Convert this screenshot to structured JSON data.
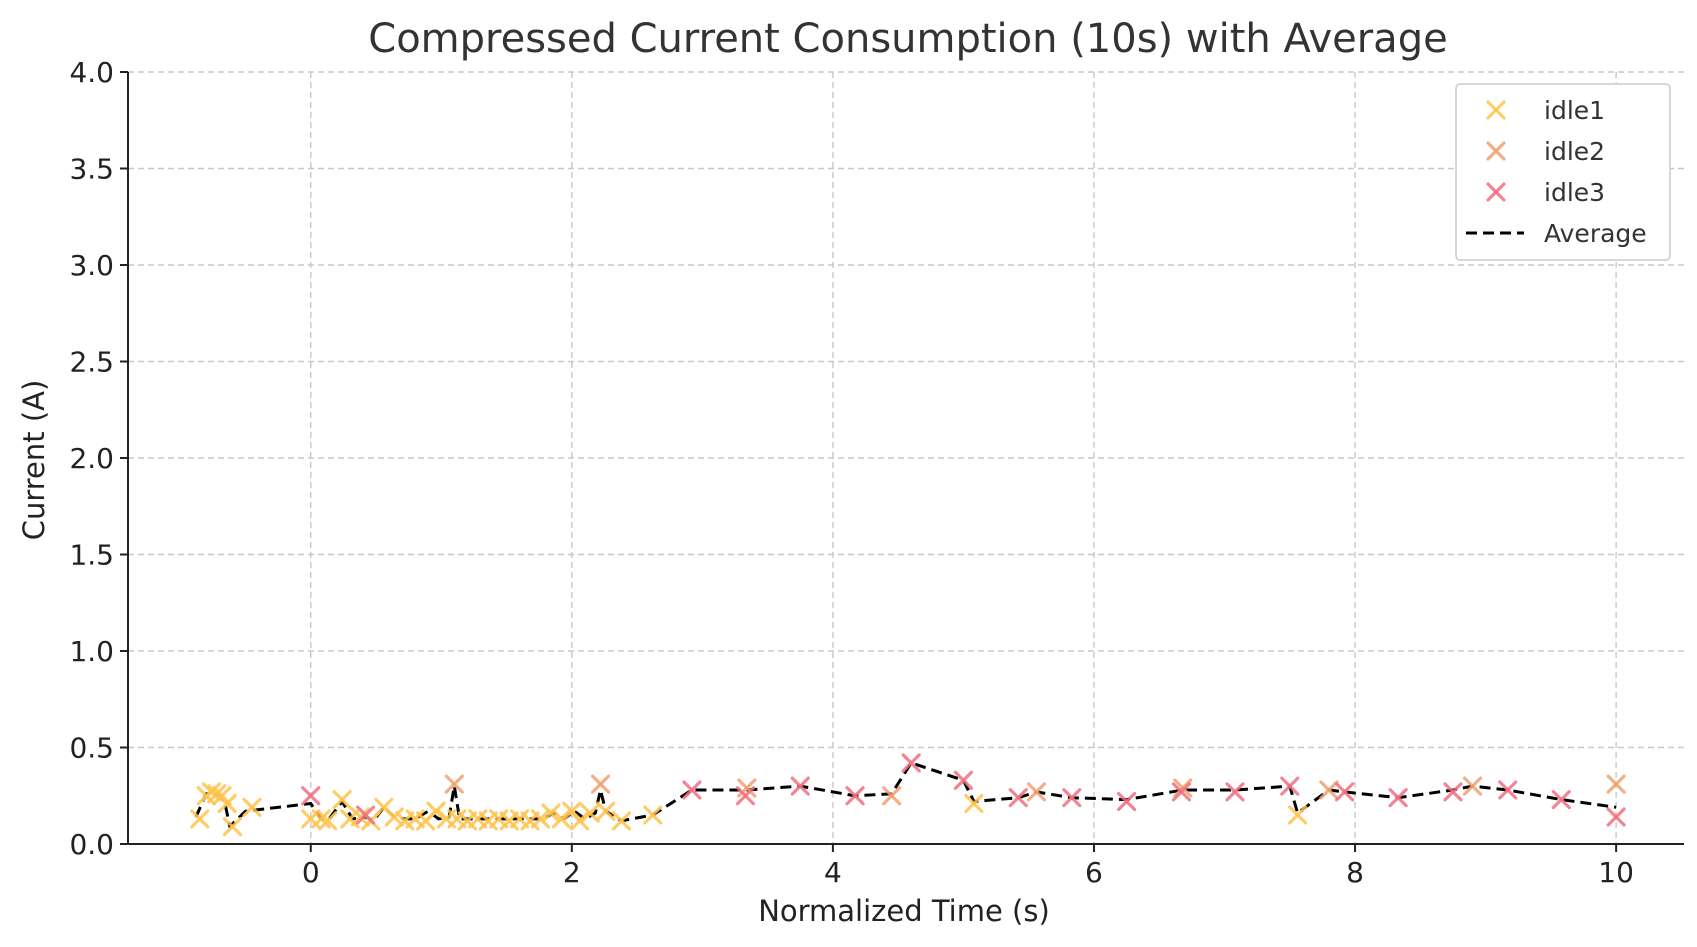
{
  "chart_data": {
    "type": "scatter",
    "title": "Compressed Current Consumption (10s) with Average",
    "xlabel": "Normalized Time (s)",
    "ylabel": "Current (A)",
    "xlim": [
      -1.4,
      10.52
    ],
    "ylim": [
      0.0,
      4.0
    ],
    "xticks": [
      0,
      2,
      4,
      6,
      8,
      10
    ],
    "xtick_labels": [
      "0",
      "2",
      "4",
      "6",
      "8",
      "10"
    ],
    "yticks": [
      0.0,
      0.5,
      1.0,
      1.5,
      2.0,
      2.5,
      3.0,
      3.5,
      4.0
    ],
    "ytick_labels": [
      "0.0",
      "0.5",
      "1.0",
      "1.5",
      "2.0",
      "2.5",
      "3.0",
      "3.5",
      "4.0"
    ],
    "grid": true,
    "legend_position": "top-right",
    "series": [
      {
        "name": "idle1",
        "color": "#FFC34D",
        "marker": "x",
        "x": [
          -0.85,
          -0.8,
          -0.76,
          -0.72,
          -0.68,
          -0.64,
          -0.6,
          -0.45,
          0.0,
          0.08,
          0.13,
          0.24,
          0.3,
          0.38,
          0.46,
          0.56,
          0.64,
          0.72,
          0.8,
          0.88,
          0.96,
          1.04,
          1.12,
          1.2,
          1.28,
          1.36,
          1.44,
          1.52,
          1.6,
          1.68,
          1.76,
          1.84,
          1.92,
          2.0,
          2.06,
          2.14,
          2.26,
          2.38,
          2.62,
          5.08,
          7.56
        ],
        "y": [
          0.13,
          0.25,
          0.27,
          0.26,
          0.25,
          0.21,
          0.09,
          0.19,
          0.13,
          0.13,
          0.12,
          0.23,
          0.13,
          0.14,
          0.12,
          0.19,
          0.14,
          0.12,
          0.13,
          0.12,
          0.17,
          0.13,
          0.13,
          0.12,
          0.13,
          0.12,
          0.13,
          0.12,
          0.13,
          0.12,
          0.13,
          0.16,
          0.13,
          0.17,
          0.12,
          0.16,
          0.17,
          0.12,
          0.15,
          0.21,
          0.15
        ]
      },
      {
        "name": "idle2",
        "color": "#F0A070",
        "marker": "x",
        "x": [
          1.1,
          2.22,
          3.34,
          4.45,
          5.56,
          6.68,
          7.8,
          8.9,
          10.0
        ],
        "y": [
          0.31,
          0.31,
          0.29,
          0.25,
          0.27,
          0.29,
          0.28,
          0.3,
          0.31
        ]
      },
      {
        "name": "idle3",
        "color": "#EE7080",
        "marker": "x",
        "x": [
          0.0,
          0.42,
          2.92,
          3.33,
          3.75,
          4.17,
          4.6,
          5.0,
          5.42,
          5.83,
          6.25,
          6.67,
          7.08,
          7.5,
          7.92,
          8.33,
          8.75,
          9.17,
          9.58,
          10.0
        ],
        "y": [
          0.25,
          0.15,
          0.28,
          0.25,
          0.3,
          0.25,
          0.42,
          0.33,
          0.24,
          0.24,
          0.22,
          0.27,
          0.27,
          0.3,
          0.27,
          0.24,
          0.27,
          0.28,
          0.23,
          0.14
        ]
      }
    ],
    "average": {
      "name": "Average",
      "color": "#000000",
      "style": "dashed",
      "x": [
        -0.88,
        -0.8,
        -0.74,
        -0.7,
        -0.66,
        -0.62,
        -0.5,
        0.0,
        0.08,
        0.14,
        0.24,
        0.32,
        0.42,
        0.48,
        0.56,
        0.64,
        0.72,
        0.8,
        0.9,
        0.98,
        1.06,
        1.1,
        1.14,
        1.22,
        1.3,
        1.38,
        1.46,
        1.54,
        1.62,
        1.7,
        1.78,
        1.86,
        1.94,
        2.02,
        2.1,
        2.18,
        2.22,
        2.26,
        2.38,
        2.62,
        2.92,
        3.34,
        3.75,
        4.17,
        4.45,
        4.6,
        5.0,
        5.08,
        5.42,
        5.56,
        5.83,
        6.25,
        6.68,
        7.08,
        7.5,
        7.56,
        7.8,
        7.92,
        8.33,
        8.75,
        8.9,
        9.17,
        9.58,
        10.0
      ],
      "y": [
        0.14,
        0.26,
        0.26,
        0.25,
        0.22,
        0.09,
        0.17,
        0.21,
        0.13,
        0.13,
        0.22,
        0.13,
        0.14,
        0.12,
        0.19,
        0.14,
        0.13,
        0.13,
        0.17,
        0.13,
        0.14,
        0.3,
        0.13,
        0.13,
        0.13,
        0.13,
        0.13,
        0.13,
        0.13,
        0.13,
        0.13,
        0.16,
        0.13,
        0.17,
        0.13,
        0.16,
        0.28,
        0.17,
        0.12,
        0.15,
        0.28,
        0.28,
        0.3,
        0.25,
        0.26,
        0.42,
        0.33,
        0.22,
        0.24,
        0.27,
        0.24,
        0.23,
        0.28,
        0.28,
        0.3,
        0.16,
        0.28,
        0.27,
        0.24,
        0.28,
        0.3,
        0.28,
        0.23,
        0.19
      ]
    }
  }
}
